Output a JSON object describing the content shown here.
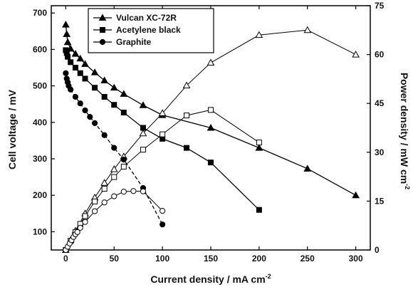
{
  "chart_data": {
    "type": "line",
    "xlabel": "Current density / mA cm",
    "xlabel_sup": "-2",
    "ylabel_left": "Cell voltage / mV",
    "ylabel_right": "Power density / mW cm",
    "ylabel_right_sup": "-2",
    "xlim": [
      -15,
      315
    ],
    "ylim_left": [
      50,
      720
    ],
    "ylim_right": [
      0,
      75
    ],
    "x_ticks": [
      0,
      50,
      100,
      150,
      200,
      250,
      300
    ],
    "y_left_ticks": [
      100,
      200,
      300,
      400,
      500,
      600,
      700
    ],
    "y_right_ticks": [
      0,
      15,
      30,
      45,
      60,
      75
    ],
    "legend_position": "top-left",
    "series": [
      {
        "name": "Vulcan XC-72R",
        "marker": "triangle",
        "voltage": {
          "x": [
            0,
            1,
            2,
            5,
            10,
            15,
            20,
            30,
            40,
            50,
            60,
            80,
            100,
            150,
            200,
            250,
            300
          ],
          "y": [
            668,
            642,
            620,
            602,
            588,
            575,
            560,
            537,
            515,
            495,
            478,
            447,
            420,
            385,
            330,
            273,
            200
          ]
        },
        "power": {
          "x": [
            0,
            5,
            10,
            20,
            30,
            40,
            50,
            60,
            80,
            100,
            125,
            150,
            200,
            250,
            300
          ],
          "y": [
            0,
            3.0,
            5.9,
            11.2,
            16.1,
            20.6,
            24.8,
            28.7,
            35.8,
            42.0,
            50.5,
            57.5,
            66.0,
            67.5,
            60.0
          ]
        }
      },
      {
        "name": "Acetylene black",
        "marker": "square",
        "voltage": {
          "x": [
            0,
            1,
            2,
            5,
            10,
            15,
            20,
            30,
            40,
            50,
            60,
            80,
            100,
            125,
            150,
            200
          ],
          "y": [
            598,
            590,
            580,
            565,
            550,
            535,
            520,
            495,
            470,
            448,
            427,
            385,
            355,
            330,
            290,
            160
          ]
        },
        "power": {
          "x": [
            0,
            5,
            10,
            15,
            20,
            30,
            40,
            50,
            60,
            80,
            100,
            125,
            150,
            200
          ],
          "y": [
            0,
            2.8,
            5.5,
            8.0,
            10.4,
            14.9,
            18.8,
            22.4,
            25.6,
            30.8,
            35.5,
            41.3,
            43.0,
            33.0
          ]
        }
      },
      {
        "name": "Graphite",
        "marker": "circle",
        "voltage": {
          "x": [
            0,
            1,
            2,
            3,
            5,
            10,
            15,
            20,
            25,
            30,
            40,
            50,
            60,
            80,
            100
          ],
          "y": [
            535,
            520,
            510,
            500,
            490,
            470,
            452,
            433,
            415,
            398,
            365,
            330,
            298,
            220,
            120
          ]
        },
        "power": {
          "x": [
            0,
            2,
            4,
            6,
            8,
            10,
            12,
            15,
            20,
            30,
            40,
            50,
            60,
            70,
            80,
            100
          ],
          "y": [
            0,
            1.0,
            2.0,
            3.0,
            4.0,
            4.8,
            5.5,
            6.8,
            8.6,
            11.9,
            14.6,
            16.5,
            17.9,
            18.1,
            18.0,
            12.0
          ]
        }
      }
    ]
  }
}
